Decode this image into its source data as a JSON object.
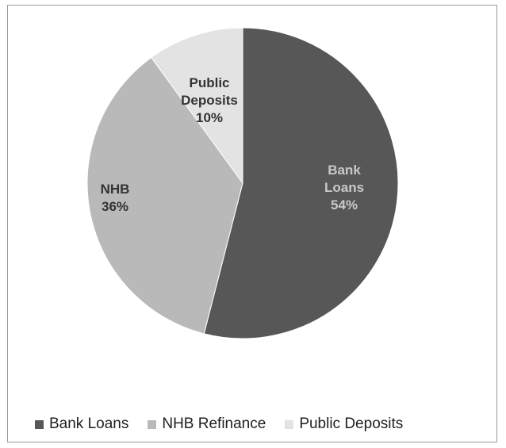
{
  "chart_data": {
    "type": "pie",
    "title": "",
    "slices": [
      {
        "name": "Bank Loans",
        "label_lines": [
          "Bank",
          "Loans"
        ],
        "percent_label": "54%",
        "value": 54,
        "color": "#575757",
        "label_color": "#c8c8c8"
      },
      {
        "name": "NHB Refinance",
        "label_lines": [
          "NHB"
        ],
        "percent_label": "36%",
        "value": 36,
        "color": "#b9b9b9",
        "label_color": "#333333"
      },
      {
        "name": "Public Deposits",
        "label_lines": [
          "Public",
          "Deposits"
        ],
        "percent_label": "10%",
        "value": 10,
        "color": "#e3e3e3",
        "label_color": "#333333"
      }
    ],
    "legend": {
      "position": "bottom",
      "items": [
        {
          "label": "Bank Loans",
          "color": "#575757"
        },
        {
          "label": "NHB Refinance",
          "color": "#b9b9b9"
        },
        {
          "label": "Public Deposits",
          "color": "#e3e3e3"
        }
      ]
    }
  }
}
